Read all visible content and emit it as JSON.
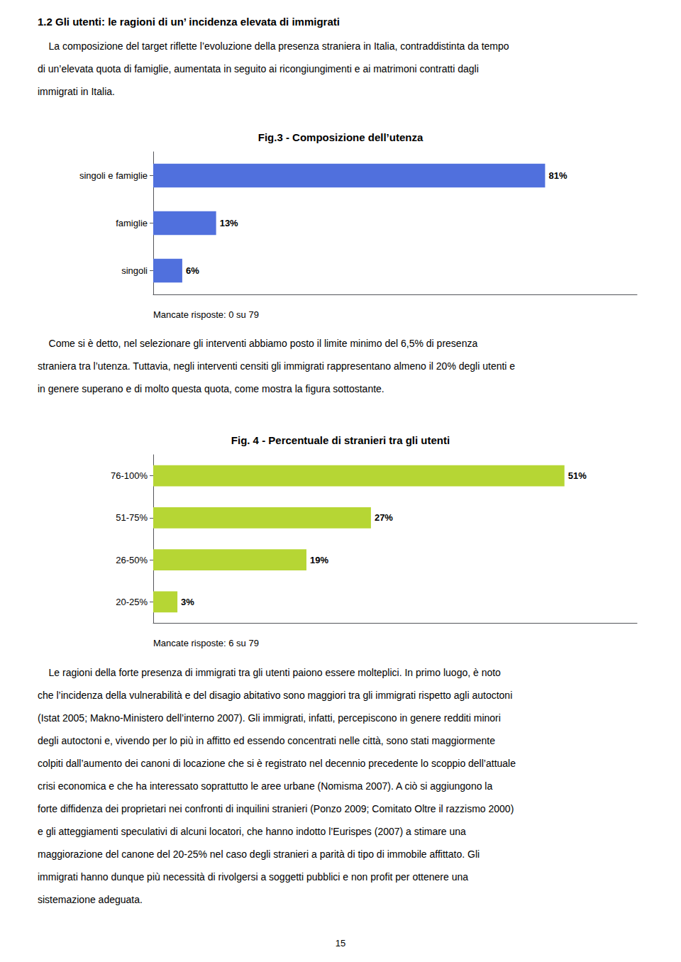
{
  "title": "1.2 Gli utenti: le ragioni di un’ incidenza elevata di immigrati",
  "paragraphs": [
    [
      "    La composizione del target riflette l’evoluzione della presenza straniera in Italia, contraddistinta da tempo",
      "di un’elevata quota di famiglie, aumentata in seguito ai ricongiungimenti e ai matrimoni contratti dagli",
      "immigrati in Italia."
    ],
    [
      "    Come si è detto, nel selezionare gli interventi abbiamo posto il limite minimo del 6,5% di presenza",
      "straniera tra l’utenza. Tuttavia, negli interventi censiti gli immigrati rappresentano almeno il 20% degli utenti e",
      "in genere superano e di molto questa quota, come mostra la figura sottostante."
    ],
    [
      "    Le ragioni della forte presenza di immigrati tra gli utenti paiono essere molteplici. In primo luogo, è noto",
      "che l’incidenza della vulnerabilità e del disagio abitativo sono maggiori tra gli immigrati rispetto agli autoctoni",
      "(Istat 2005; Makno-Ministero dell’interno 2007). Gli immigrati, infatti, percepiscono in genere redditi minori",
      "degli autoctoni e, vivendo per lo più in affitto ed essendo concentrati nelle città, sono stati maggiormente",
      "colpiti dall’aumento dei canoni di locazione che si è registrato nel decennio precedente lo scoppio dell’attuale",
      "crisi economica e che ha interessato soprattutto le aree urbane (Nomisma 2007). A ciò si aggiungono la",
      "forte diffidenza dei proprietari nei confronti di inquilini stranieri (Ponzo 2009; Comitato Oltre il razzismo 2000)",
      "e gli atteggiamenti speculativi di alcuni locatori, che hanno indotto l’Eurispes (2007) a stimare una",
      "maggiorazione del canone del 20-25% nel caso degli stranieri a parità di tipo di immobile affittato. Gli",
      "immigrati hanno dunque più necessità di rivolgersi a soggetti pubblici e non profit per ottenere una",
      "sistemazione adeguata."
    ]
  ],
  "page_number": "15",
  "chart_data": [
    {
      "type": "bar",
      "orientation": "horizontal",
      "title": "Fig.3 - Composizione dell’utenza",
      "categories": [
        "singoli e famiglie",
        "famiglie",
        "singoli"
      ],
      "values": [
        81,
        13,
        6
      ],
      "value_labels": [
        "81%",
        "13%",
        "6%"
      ],
      "data_labels": true,
      "xlim": [
        0,
        100
      ],
      "tick_labels": "y",
      "grid": false,
      "annotations": [
        "Mancate risposte: 0 su 79"
      ]
    },
    {
      "type": "bar",
      "orientation": "horizontal",
      "title": "Fig. 4 - Percentuale di stranieri tra gli utenti",
      "categories": [
        "76-100%",
        "51-75%",
        "26-50%",
        "20-25%"
      ],
      "values": [
        51,
        27,
        19,
        3
      ],
      "value_labels": [
        "51%",
        "27%",
        "19%",
        "3%"
      ],
      "data_labels": true,
      "xlim": [
        0,
        60
      ],
      "tick_labels": "y",
      "grid": false,
      "annotations": [
        "Mancate risposte: 6 su 79"
      ]
    }
  ]
}
